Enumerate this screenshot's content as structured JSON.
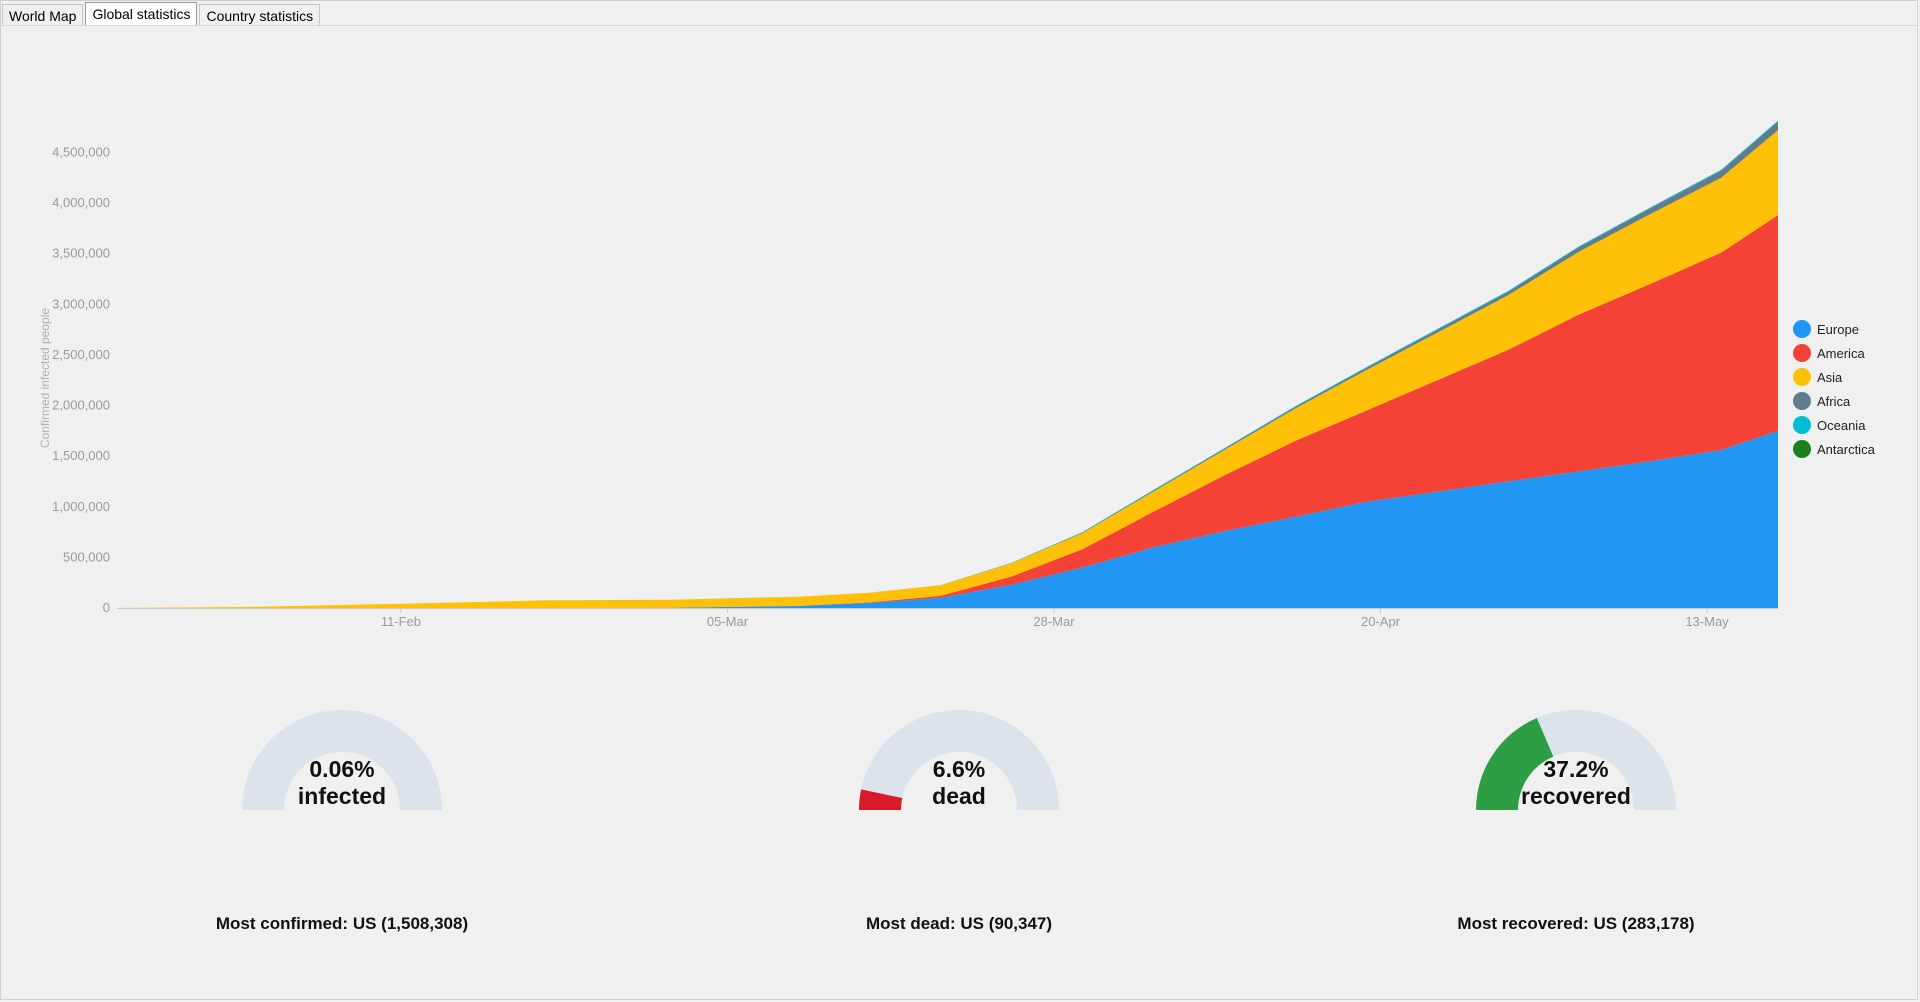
{
  "tabs": [
    {
      "label": "World Map",
      "active": false
    },
    {
      "label": "Global statistics",
      "active": true
    },
    {
      "label": "Country statistics",
      "active": false
    }
  ],
  "chart_data": {
    "type": "area",
    "stacked": true,
    "ylabel": "Confirmed infected people",
    "xlabel": "",
    "ylim": [
      0,
      4800000
    ],
    "y_ticks": [
      "0",
      "500,000",
      "1,000,000",
      "1,500,000",
      "2,000,000",
      "2,500,000",
      "3,000,000",
      "3,500,000",
      "4,000,000",
      "4,500,000"
    ],
    "y_tick_values": [
      0,
      500000,
      1000000,
      1500000,
      2000000,
      2500000,
      3000000,
      3500000,
      4000000,
      4500000
    ],
    "x_ticks": [
      "11-Feb",
      "05-Mar",
      "28-Mar",
      "20-Apr",
      "13-May"
    ],
    "x_tick_values": [
      "2020-02-11",
      "2020-03-05",
      "2020-03-28",
      "2020-04-20",
      "2020-05-13"
    ],
    "x": [
      "2020-01-22",
      "2020-02-01",
      "2020-02-11",
      "2020-02-21",
      "2020-03-01",
      "2020-03-10",
      "2020-03-15",
      "2020-03-20",
      "2020-03-25",
      "2020-03-30",
      "2020-04-04",
      "2020-04-09",
      "2020-04-14",
      "2020-04-19",
      "2020-04-24",
      "2020-04-29",
      "2020-05-04",
      "2020-05-09",
      "2020-05-14",
      "2020-05-18"
    ],
    "series": [
      {
        "name": "Europe",
        "color": "#2196F3",
        "values": [
          0,
          0,
          0,
          0,
          2000,
          20000,
          50000,
          100000,
          230000,
          400000,
          600000,
          760000,
          900000,
          1050000,
          1150000,
          1250000,
          1350000,
          1450000,
          1560000,
          1750000
        ]
      },
      {
        "name": "America",
        "color": "#F44336",
        "values": [
          0,
          0,
          0,
          0,
          100,
          1000,
          5000,
          20000,
          80000,
          180000,
          350000,
          550000,
          750000,
          900000,
          1100000,
          1300000,
          1550000,
          1750000,
          1950000,
          2130000
        ]
      },
      {
        "name": "Asia",
        "color": "#FFC107",
        "values": [
          500,
          12000,
          42000,
          75000,
          80000,
          90000,
          96000,
          103000,
          130000,
          160000,
          200000,
          250000,
          320000,
          400000,
          470000,
          540000,
          620000,
          690000,
          740000,
          840000
        ]
      },
      {
        "name": "Africa",
        "color": "#607D8B",
        "values": [
          0,
          0,
          0,
          0,
          0,
          100,
          300,
          1000,
          2500,
          5000,
          8000,
          11000,
          15000,
          20000,
          27000,
          34000,
          45000,
          57000,
          70000,
          85000
        ]
      },
      {
        "name": "Oceania",
        "color": "#00BCD4",
        "values": [
          0,
          0,
          10,
          20,
          30,
          100,
          300,
          800,
          2500,
          5000,
          7000,
          7600,
          7800,
          8000,
          8100,
          8200,
          8300,
          8400,
          8500,
          8600
        ]
      },
      {
        "name": "Antarctica",
        "color": "#1B7F1B",
        "values": [
          0,
          0,
          0,
          0,
          0,
          0,
          0,
          0,
          0,
          0,
          0,
          0,
          0,
          0,
          0,
          0,
          0,
          0,
          0,
          0
        ]
      }
    ],
    "legend_position": "right",
    "grid": false
  },
  "gauges": [
    {
      "percent_label": "0.06%",
      "word": "infected",
      "fraction": 0.0006,
      "color": "#E53935"
    },
    {
      "percent_label": "6.6%",
      "word": "dead",
      "fraction": 0.066,
      "color": "#D81B2B"
    },
    {
      "percent_label": "37.2%",
      "word": "recovered",
      "fraction": 0.372,
      "color": "#2E9E44"
    }
  ],
  "stats": {
    "most_confirmed": "Most confirmed: US (1,508,308)",
    "most_dead": "Most dead: US (90,347)",
    "most_recovered": "Most recovered: US (283,178)"
  }
}
